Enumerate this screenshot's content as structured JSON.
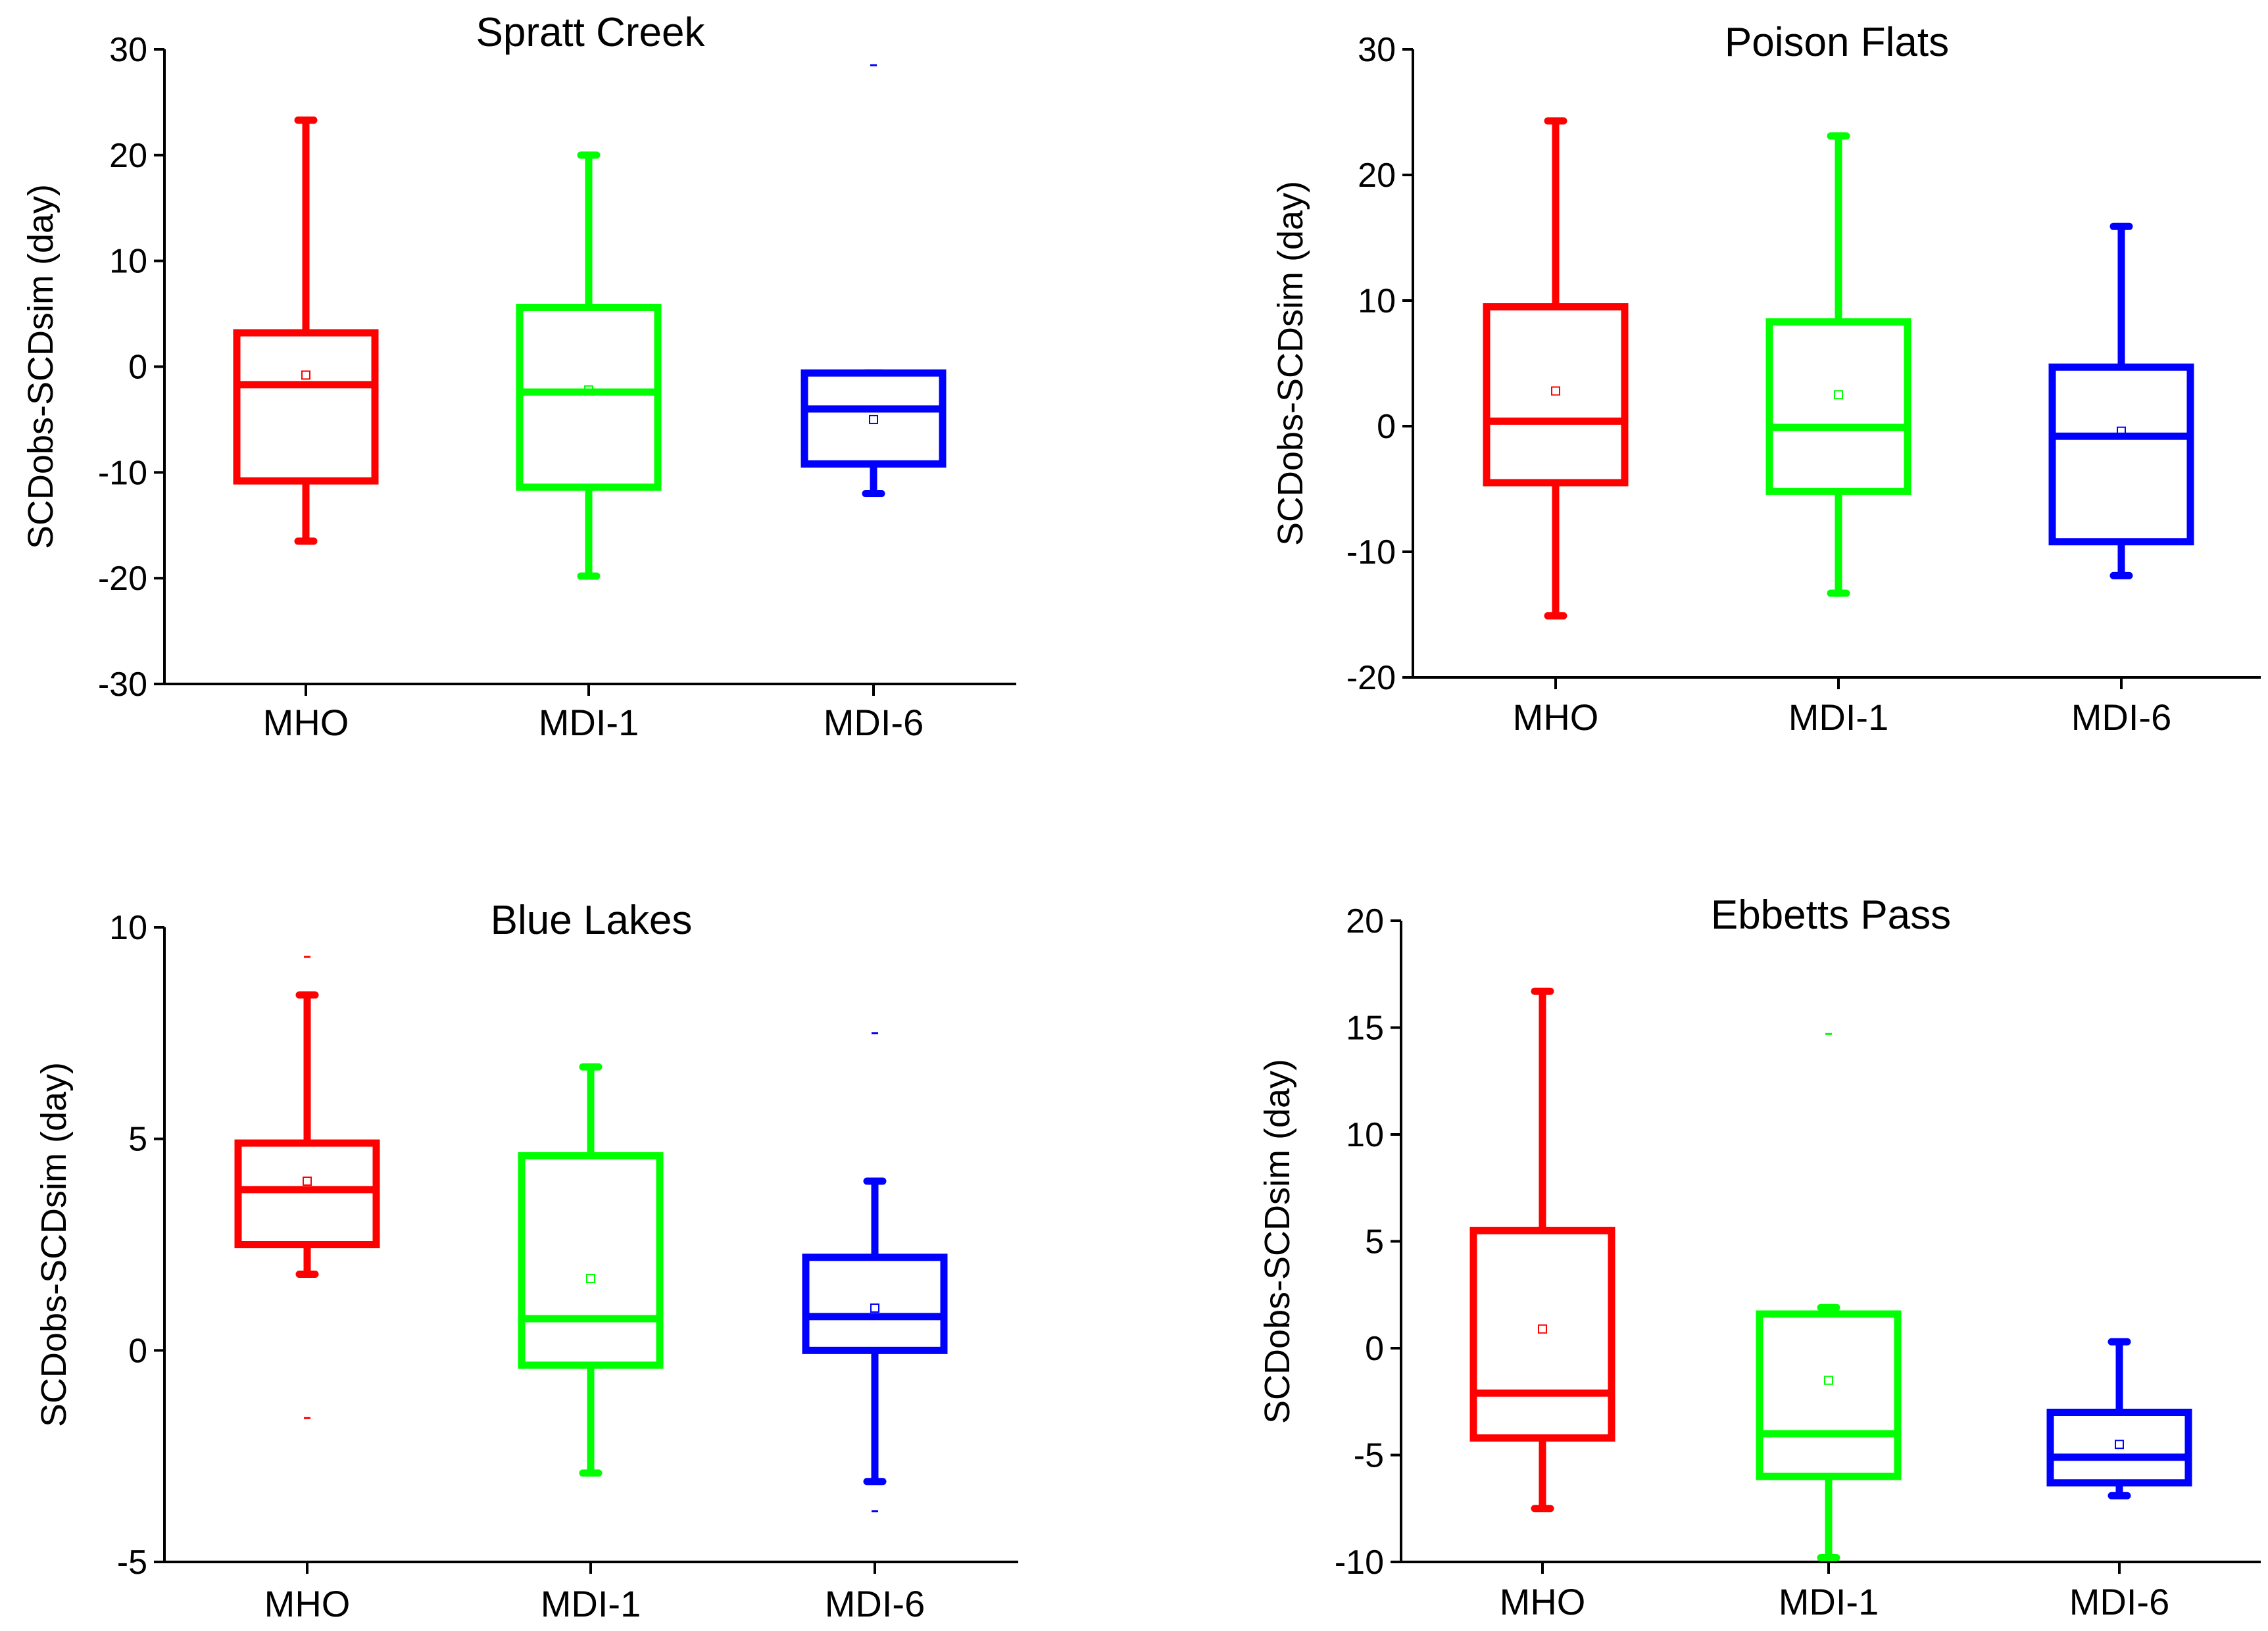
{
  "chart_data": [
    {
      "type": "box",
      "title": "Spratt Creek",
      "xlabel": "",
      "ylabel": "SCDobs-SCDsim (day)",
      "ylim": [
        -30,
        30
      ],
      "yticks": [
        -30,
        -20,
        -10,
        0,
        10,
        20,
        30
      ],
      "categories": [
        "MHO",
        "MDI-1",
        "MDI-6"
      ],
      "colors": [
        "#ff0000",
        "#00ff00",
        "#0000ff"
      ],
      "boxes": [
        {
          "name": "MHO",
          "whisker_low": -16.5,
          "q1": -10.8,
          "median": -1.7,
          "q3": 3.2,
          "whisker_high": 23.3,
          "mean": -0.8,
          "outliers": []
        },
        {
          "name": "MDI-1",
          "whisker_low": -19.8,
          "q1": -11.4,
          "median": -2.4,
          "q3": 5.6,
          "whisker_high": 20.0,
          "mean": -2.2,
          "outliers": []
        },
        {
          "name": "MDI-6",
          "whisker_low": -12.0,
          "q1": -9.2,
          "median": -4.0,
          "q3": -0.6,
          "whisker_high": -0.6,
          "mean": -5.0,
          "outliers": [
            28.5
          ]
        }
      ]
    },
    {
      "type": "box",
      "title": "Poison Flats",
      "xlabel": "",
      "ylabel": "SCDobs-SCDsim (day)",
      "ylim": [
        -20,
        30
      ],
      "yticks": [
        -20,
        -10,
        0,
        10,
        20,
        30
      ],
      "categories": [
        "MHO",
        "MDI-1",
        "MDI-6"
      ],
      "colors": [
        "#ff0000",
        "#00ff00",
        "#0000ff"
      ],
      "boxes": [
        {
          "name": "MHO",
          "whisker_low": -15.1,
          "q1": -4.5,
          "median": 0.4,
          "q3": 9.5,
          "whisker_high": 24.3,
          "mean": 2.8,
          "outliers": []
        },
        {
          "name": "MDI-1",
          "whisker_low": -13.3,
          "q1": -5.2,
          "median": -0.1,
          "q3": 8.3,
          "whisker_high": 23.1,
          "mean": 2.5,
          "outliers": []
        },
        {
          "name": "MDI-6",
          "whisker_low": -11.9,
          "q1": -9.2,
          "median": -0.8,
          "q3": 4.7,
          "whisker_high": 15.9,
          "mean": -0.4,
          "outliers": []
        }
      ]
    },
    {
      "type": "box",
      "title": "Blue Lakes",
      "xlabel": "",
      "ylabel": "SCDobs-SCDsim (day)",
      "ylim": [
        -5,
        10
      ],
      "yticks": [
        -5,
        0,
        5,
        10
      ],
      "categories": [
        "MHO",
        "MDI-1",
        "MDI-6"
      ],
      "colors": [
        "#ff0000",
        "#00ff00",
        "#0000ff"
      ],
      "boxes": [
        {
          "name": "MHO",
          "whisker_low": 1.8,
          "q1": 2.5,
          "median": 3.8,
          "q3": 4.9,
          "whisker_high": 8.4,
          "mean": 4.0,
          "outliers": [
            9.3,
            -1.6
          ]
        },
        {
          "name": "MDI-1",
          "whisker_low": -2.9,
          "q1": -0.35,
          "median": 0.75,
          "q3": 4.6,
          "whisker_high": 6.7,
          "mean": 1.7,
          "outliers": []
        },
        {
          "name": "MDI-6",
          "whisker_low": -3.1,
          "q1": 0.0,
          "median": 0.8,
          "q3": 2.2,
          "whisker_high": 4.0,
          "mean": 1.0,
          "outliers": [
            7.5,
            -3.8
          ]
        }
      ]
    },
    {
      "type": "box",
      "title": "Ebbetts Pass",
      "xlabel": "",
      "ylabel": "SCDobs-SCDsim (day)",
      "ylim": [
        -10,
        20
      ],
      "yticks": [
        -10,
        -5,
        0,
        5,
        10,
        15,
        20
      ],
      "categories": [
        "MHO",
        "MDI-1",
        "MDI-6"
      ],
      "colors": [
        "#ff0000",
        "#00ff00",
        "#0000ff"
      ],
      "boxes": [
        {
          "name": "MHO",
          "whisker_low": -7.5,
          "q1": -4.2,
          "median": -2.1,
          "q3": 5.5,
          "whisker_high": 16.7,
          "mean": 0.9,
          "outliers": []
        },
        {
          "name": "MDI-1",
          "whisker_low": -9.8,
          "q1": -6.0,
          "median": -4.0,
          "q3": 1.6,
          "whisker_high": 1.9,
          "mean": -1.5,
          "outliers": [
            14.7
          ]
        },
        {
          "name": "MDI-6",
          "whisker_low": -6.9,
          "q1": -6.3,
          "median": -5.1,
          "q3": -3.0,
          "whisker_high": 0.3,
          "mean": -4.5,
          "outliers": []
        }
      ]
    }
  ]
}
